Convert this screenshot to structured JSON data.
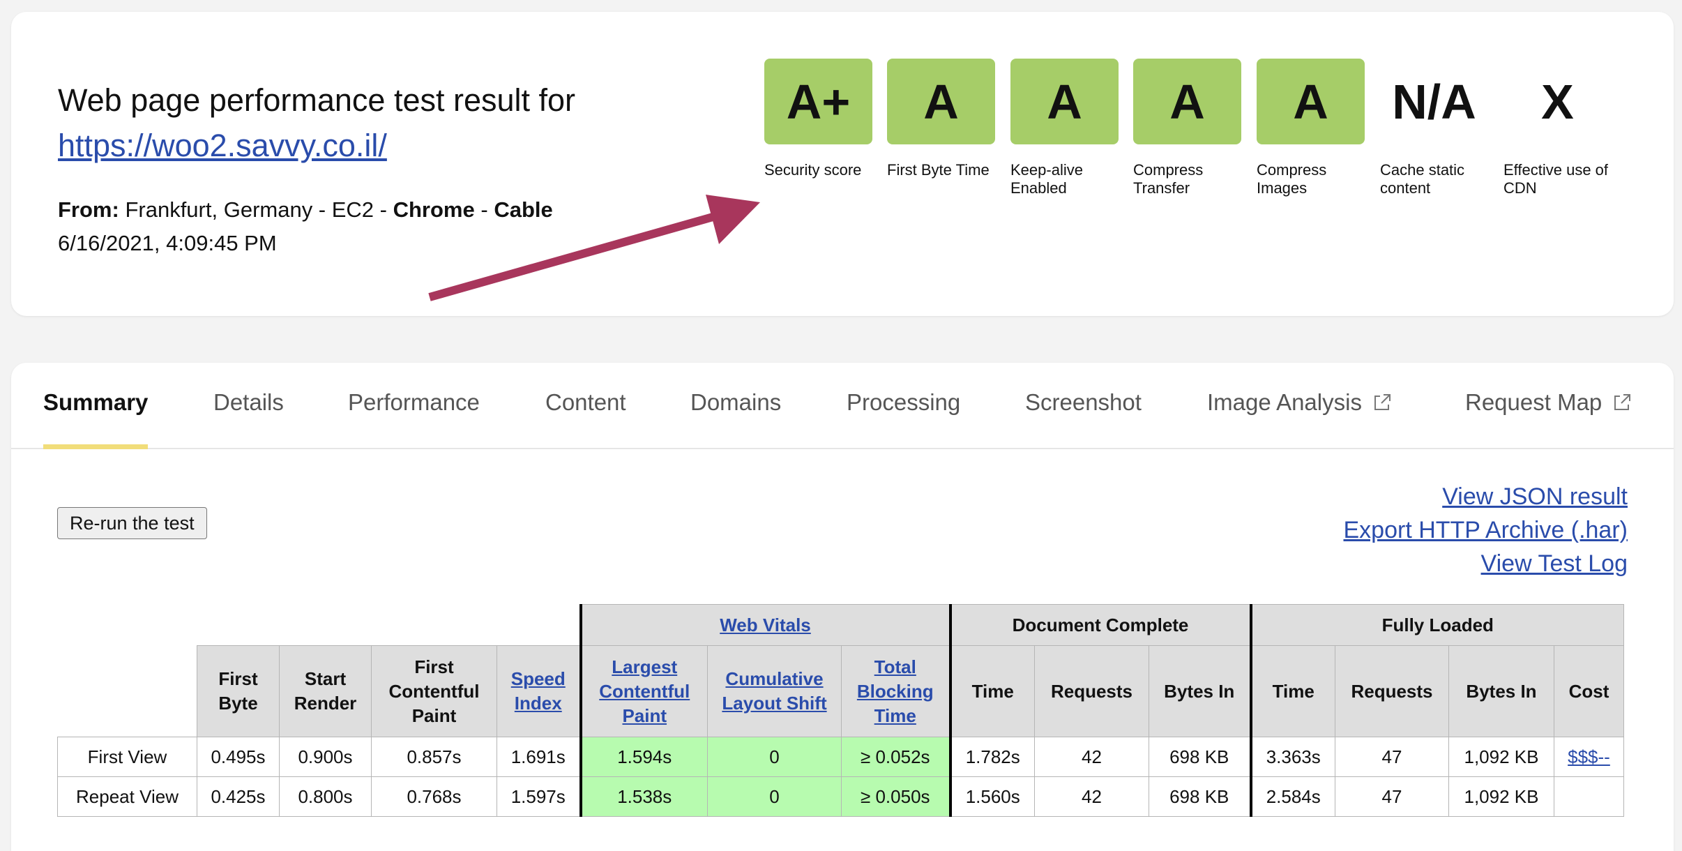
{
  "header": {
    "title": "Web page performance test result for",
    "url": "https://woo2.savvy.co.il/",
    "from_label": "From:",
    "location": "Frankfurt, Germany - EC2 -",
    "browser": "Chrome",
    "sep": "-",
    "connection": "Cable",
    "timestamp": "6/16/2021, 4:09:45 PM"
  },
  "grades": [
    {
      "grade": "A+",
      "label": "Security score",
      "color": "#a6cd68"
    },
    {
      "grade": "A",
      "label": "First Byte Time",
      "color": "#a6cd68"
    },
    {
      "grade": "A",
      "label": "Keep-alive Enabled",
      "color": "#a6cd68"
    },
    {
      "grade": "A",
      "label": "Compress Transfer",
      "color": "#a6cd68"
    },
    {
      "grade": "A",
      "label": "Compress Images",
      "color": "#a6cd68"
    },
    {
      "grade": "N/A",
      "label": "Cache static content",
      "color": null
    },
    {
      "grade": "X",
      "label": "Effective use of CDN",
      "color": null
    }
  ],
  "tabs": [
    {
      "label": "Summary",
      "active": true
    },
    {
      "label": "Details"
    },
    {
      "label": "Performance"
    },
    {
      "label": "Content"
    },
    {
      "label": "Domains"
    },
    {
      "label": "Processing"
    },
    {
      "label": "Screenshot"
    },
    {
      "label": "Image Analysis",
      "external": true
    },
    {
      "label": "Request Map",
      "external": true
    }
  ],
  "actions": {
    "rerun": "Re-run the test",
    "view_json": "View JSON result",
    "export_har": "Export HTTP Archive (.har)",
    "view_log": "View Test Log"
  },
  "table": {
    "groups": {
      "web_vitals": "Web Vitals",
      "document_complete": "Document Complete",
      "fully_loaded": "Fully Loaded"
    },
    "headers": {
      "first_byte": "First Byte",
      "start_render": "Start Render",
      "fcp": "First Contentful Paint",
      "speed_index": "Speed Index",
      "lcp": "Largest Contentful Paint",
      "cls": "Cumulative Layout Shift",
      "tbt": "Total Blocking Time",
      "dc_time": "Time",
      "dc_requests": "Requests",
      "dc_bytes": "Bytes In",
      "fl_time": "Time",
      "fl_requests": "Requests",
      "fl_bytes": "Bytes In",
      "cost": "Cost"
    },
    "rows": [
      {
        "label": "First View",
        "first_byte": "0.495s",
        "start_render": "0.900s",
        "fcp": "0.857s",
        "speed_index": "1.691s",
        "lcp": "1.594s",
        "cls": "0",
        "tbt": "≥ 0.052s",
        "dc_time": "1.782s",
        "dc_requests": "42",
        "dc_bytes": "698 KB",
        "fl_time": "3.363s",
        "fl_requests": "47",
        "fl_bytes": "1,092 KB",
        "cost": "$$$--"
      },
      {
        "label": "Repeat View",
        "first_byte": "0.425s",
        "start_render": "0.800s",
        "fcp": "0.768s",
        "speed_index": "1.597s",
        "lcp": "1.538s",
        "cls": "0",
        "tbt": "≥ 0.050s",
        "dc_time": "1.560s",
        "dc_requests": "42",
        "dc_bytes": "698 KB",
        "fl_time": "2.584s",
        "fl_requests": "47",
        "fl_bytes": "1,092 KB",
        "cost": ""
      }
    ]
  }
}
